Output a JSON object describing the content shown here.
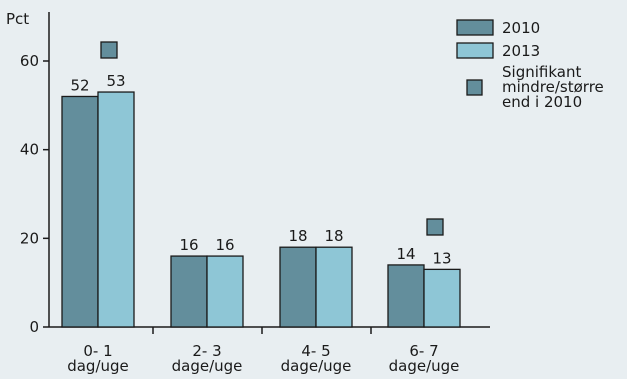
{
  "chart_data": {
    "type": "bar",
    "ylabel": "Pct",
    "xlabel": "",
    "ylim": [
      0,
      70
    ],
    "yticks": [
      0,
      20,
      40,
      60
    ],
    "grid": false,
    "legend_position": "top-right",
    "categories": [
      [
        "0- 1",
        "dag/uge"
      ],
      [
        "2- 3",
        "dage/uge"
      ],
      [
        "4- 5",
        "dage/uge"
      ],
      [
        "6- 7",
        "dage/uge"
      ]
    ],
    "series": [
      {
        "name": "2010",
        "values": [
          52,
          16,
          18,
          14
        ],
        "color": "#638e9c"
      },
      {
        "name": "2013",
        "values": [
          53,
          16,
          18,
          13
        ],
        "color": "#8ec6d6"
      }
    ],
    "significance_markers": {
      "categories_index": [
        0,
        3
      ],
      "value": 63,
      "color": "#638e9c"
    },
    "legend": {
      "entries": [
        "2010",
        "2013"
      ],
      "marker_label": [
        "Signifikant",
        "mindre/større",
        "end i 2010"
      ]
    }
  }
}
